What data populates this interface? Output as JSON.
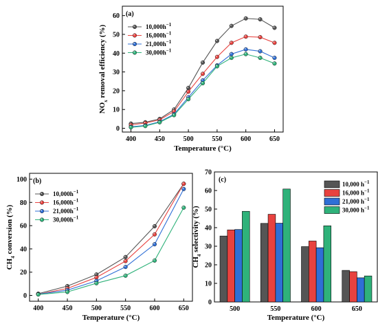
{
  "chart_data": [
    {
      "panel": "(a)",
      "type": "line",
      "xlabel": "Temperature (°C)",
      "ylabel": [
        "NO",
        "x",
        " removal efficiency (%)"
      ],
      "x": [
        400,
        425,
        450,
        475,
        500,
        525,
        550,
        575,
        600,
        625,
        650
      ],
      "xticks": [
        "400",
        "450",
        "500",
        "550",
        "600",
        "650"
      ],
      "yticks": [
        "0",
        "10",
        "20",
        "30",
        "40",
        "50",
        "60"
      ],
      "xlim": [
        385,
        665
      ],
      "ylim": [
        -2,
        65
      ],
      "legend_position": "top-left",
      "series": [
        {
          "name": [
            "10,000h",
            "−1"
          ],
          "color": "#555555",
          "values": [
            2.5,
            3.2,
            5.0,
            10.0,
            21.5,
            35.0,
            46.5,
            54.5,
            58.5,
            58.0,
            53.5
          ]
        },
        {
          "name": [
            "16,000h",
            "−1"
          ],
          "color": "#e8423f",
          "values": [
            1.8,
            2.8,
            4.5,
            9.0,
            19.5,
            29.0,
            38.0,
            45.5,
            48.8,
            48.5,
            45.5
          ]
        },
        {
          "name": [
            "21,000h",
            "−1"
          ],
          "color": "#2f6fd6",
          "values": [
            0.8,
            1.5,
            3.5,
            7.5,
            16.5,
            25.5,
            33.5,
            39.5,
            42.0,
            41.0,
            37.5
          ]
        },
        {
          "name": [
            "30,000h",
            "−1"
          ],
          "color": "#2fb27a",
          "values": [
            0.5,
            1.2,
            3.2,
            7.0,
            15.5,
            24.0,
            33.0,
            37.5,
            39.5,
            37.5,
            34.5
          ]
        }
      ]
    },
    {
      "panel": "(b)",
      "type": "line",
      "xlabel": "Temperature (°C)",
      "ylabel": [
        "CH",
        "4",
        " conversion (%)"
      ],
      "x": [
        400,
        450,
        500,
        550,
        600,
        650
      ],
      "xticks": [
        "400",
        "450",
        "500",
        "550",
        "600",
        "650"
      ],
      "yticks": [
        "0",
        "20",
        "40",
        "60",
        "80",
        "100"
      ],
      "xlim": [
        385,
        665
      ],
      "ylim": [
        -5,
        105
      ],
      "legend_position": "top-left",
      "series": [
        {
          "name": [
            "10,000h",
            "−1"
          ],
          "color": "#555555",
          "values": [
            1.5,
            8.0,
            18.0,
            33.0,
            59.5,
            96.0
          ]
        },
        {
          "name": [
            "16,000h",
            "−1"
          ],
          "color": "#e8423f",
          "values": [
            1.0,
            6.0,
            15.5,
            29.5,
            52.5,
            96.0
          ]
        },
        {
          "name": [
            "21,000h",
            "−1"
          ],
          "color": "#2f6fd6",
          "values": [
            1.0,
            4.5,
            12.5,
            24.5,
            44.0,
            91.5
          ]
        },
        {
          "name": [
            "30,000h",
            "−1"
          ],
          "color": "#2fb27a",
          "values": [
            0.8,
            3.0,
            10.5,
            17.0,
            30.0,
            75.5
          ]
        }
      ]
    },
    {
      "panel": "(c)",
      "type": "bar",
      "xlabel": "Temperature (°C)",
      "ylabel": [
        "CH",
        "4",
        " selectivity (%)"
      ],
      "categories": [
        "500",
        "550",
        "600",
        "650"
      ],
      "yticks": [
        "0",
        "10",
        "20",
        "30",
        "40",
        "50",
        "60",
        "70"
      ],
      "ylim": [
        0,
        70
      ],
      "legend_position": "top-right",
      "series": [
        {
          "name": [
            "10,000 h",
            "−1"
          ],
          "color": "#555555",
          "values": [
            35.5,
            42.3,
            29.8,
            17.0
          ]
        },
        {
          "name": [
            "16,000 h",
            "−1"
          ],
          "color": "#e8423f",
          "values": [
            38.8,
            47.2,
            32.8,
            16.3
          ]
        },
        {
          "name": [
            "21,000 h",
            "−1"
          ],
          "color": "#2f6fd6",
          "values": [
            39.0,
            42.4,
            29.2,
            13.0
          ]
        },
        {
          "name": [
            "30,000 h",
            "−1"
          ],
          "color": "#2fb27a",
          "values": [
            48.8,
            60.8,
            41.0,
            14.0
          ]
        }
      ]
    }
  ]
}
